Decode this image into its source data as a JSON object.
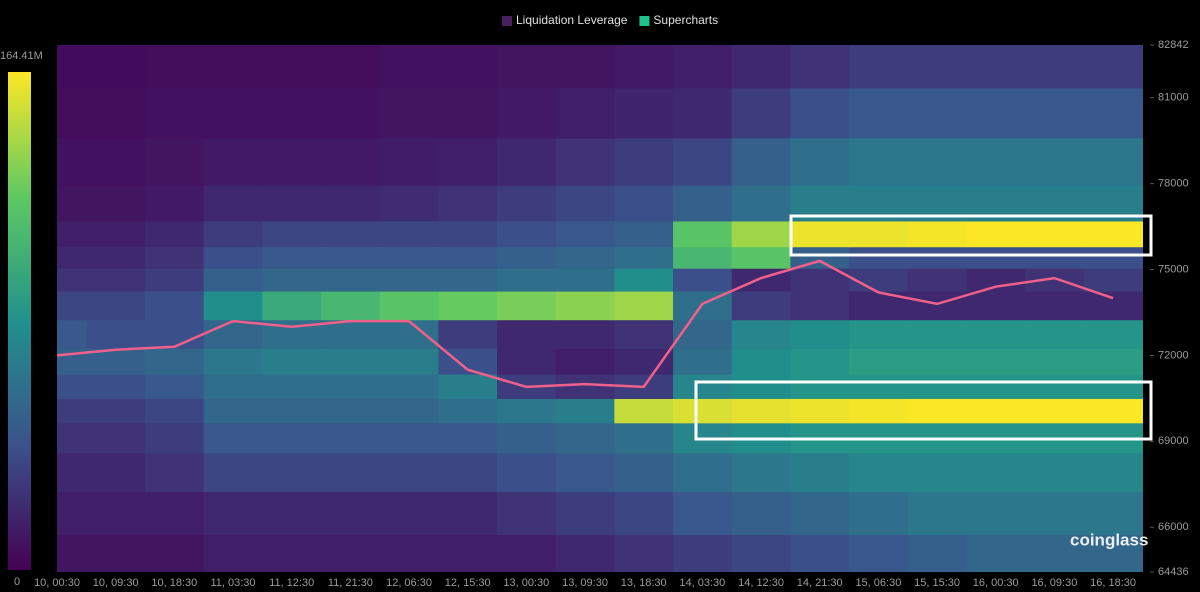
{
  "chart_data": {
    "type": "heatmap",
    "legend": [
      {
        "name": "Liquidation Leverage",
        "color": "#4a1f5e"
      },
      {
        "name": "Supercharts",
        "color": "#1fc28e"
      }
    ],
    "watermark": "coinglass",
    "categories": [
      "10, 00:30",
      "10, 09:30",
      "10, 18:30",
      "11, 03:30",
      "11, 12:30",
      "11, 21:30",
      "12, 06:30",
      "12, 15:30",
      "13, 00:30",
      "13, 09:30",
      "13, 18:30",
      "14, 03:30",
      "14, 12:30",
      "14, 21:30",
      "15, 06:30",
      "15, 15:30",
      "16, 00:30",
      "16, 09:30",
      "16, 18:30"
    ],
    "ylim": [
      64436,
      82842
    ],
    "yticks": [
      64436,
      66000,
      69000,
      72000,
      75000,
      78000,
      81000,
      82842
    ],
    "zlim": [
      0,
      164.41
    ],
    "colorbar_ticks": [
      {
        "value": 164.41,
        "label": "164.41M"
      },
      0
    ],
    "colormap": [
      "#440154",
      "#3b528b",
      "#21918c",
      "#5ec962",
      "#fde725"
    ],
    "heatmap": {
      "prices": [
        65000,
        66500,
        68000,
        69200,
        70100,
        70900,
        71800,
        72700,
        73800,
        74700,
        75400,
        76200,
        77200,
        78700,
        80500,
        82200
      ],
      "z": [
        [
          10,
          10,
          10,
          15,
          15,
          15,
          15,
          15,
          15,
          20,
          25,
          30,
          35,
          40,
          45,
          50,
          55,
          55,
          55
        ],
        [
          15,
          15,
          15,
          20,
          20,
          20,
          20,
          20,
          25,
          30,
          35,
          45,
          50,
          55,
          60,
          65,
          65,
          65,
          65
        ],
        [
          20,
          20,
          25,
          35,
          35,
          35,
          35,
          35,
          40,
          45,
          50,
          60,
          65,
          70,
          75,
          75,
          75,
          75,
          75
        ],
        [
          25,
          25,
          30,
          45,
          45,
          45,
          45,
          45,
          50,
          55,
          60,
          75,
          80,
          85,
          85,
          85,
          85,
          85,
          85
        ],
        [
          30,
          30,
          35,
          55,
          55,
          55,
          55,
          60,
          65,
          70,
          150,
          155,
          158,
          160,
          162,
          164,
          164,
          164,
          164
        ],
        [
          40,
          40,
          45,
          60,
          60,
          60,
          60,
          70,
          30,
          25,
          30,
          75,
          80,
          85,
          85,
          85,
          85,
          85,
          85
        ],
        [
          50,
          50,
          55,
          65,
          70,
          70,
          70,
          40,
          20,
          15,
          20,
          60,
          80,
          85,
          90,
          90,
          90,
          90,
          90
        ],
        [
          45,
          40,
          40,
          55,
          60,
          60,
          60,
          30,
          20,
          20,
          25,
          55,
          75,
          80,
          85,
          85,
          85,
          85,
          85
        ],
        [
          35,
          35,
          40,
          80,
          100,
          110,
          120,
          125,
          130,
          135,
          140,
          60,
          30,
          25,
          20,
          20,
          20,
          20,
          20
        ],
        [
          25,
          25,
          30,
          50,
          55,
          55,
          55,
          55,
          60,
          60,
          80,
          40,
          20,
          25,
          30,
          25,
          20,
          25,
          30
        ],
        [
          20,
          20,
          25,
          40,
          45,
          45,
          45,
          45,
          50,
          55,
          60,
          110,
          120,
          50,
          40,
          40,
          40,
          40,
          40
        ],
        [
          15,
          15,
          20,
          30,
          35,
          35,
          35,
          35,
          40,
          45,
          50,
          120,
          140,
          160,
          160,
          162,
          164,
          164,
          164
        ],
        [
          10,
          10,
          12,
          20,
          20,
          20,
          22,
          25,
          30,
          35,
          40,
          50,
          60,
          70,
          70,
          70,
          70,
          70,
          70
        ],
        [
          8,
          8,
          10,
          12,
          12,
          12,
          14,
          15,
          20,
          25,
          30,
          35,
          50,
          60,
          65,
          65,
          65,
          65,
          65
        ],
        [
          6,
          6,
          8,
          8,
          8,
          8,
          10,
          10,
          12,
          15,
          18,
          20,
          30,
          40,
          45,
          45,
          45,
          45,
          45
        ],
        [
          5,
          5,
          6,
          6,
          6,
          6,
          8,
          8,
          10,
          10,
          12,
          15,
          20,
          25,
          30,
          30,
          30,
          30,
          30
        ]
      ]
    },
    "price": {
      "color": "#f0608a",
      "values": [
        72000,
        72200,
        72300,
        73200,
        73000,
        73200,
        73200,
        71500,
        70900,
        71000,
        70900,
        73800,
        74700,
        75300,
        74200,
        73800,
        74400,
        74700,
        74000
      ]
    }
  }
}
